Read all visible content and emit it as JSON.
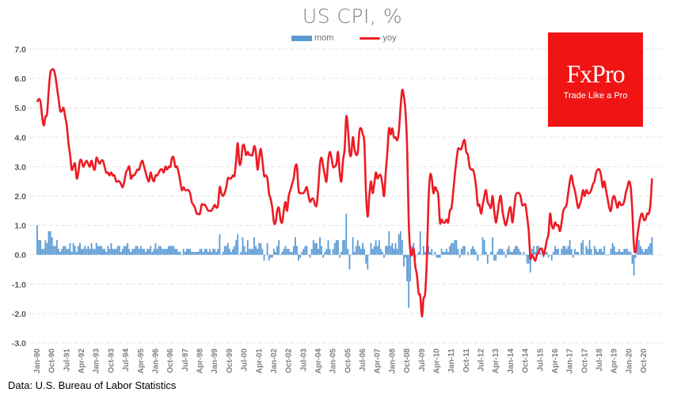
{
  "chart_data": {
    "type": "bar+line",
    "title": "US CPI, %",
    "xlabel": "",
    "ylabel": "",
    "ylim": [
      -3.0,
      7.0
    ],
    "yticks": [
      "7.0",
      "6.0",
      "5.0",
      "4.0",
      "3.0",
      "2.0",
      "1.0",
      "0.0",
      "-1.0",
      "-2.0",
      "-3.0"
    ],
    "grid": true,
    "legend_position": "top",
    "x_start": "Jan-90",
    "x_end": "Mar-21",
    "x_frequency": "monthly",
    "xticks": [
      "Jan-90",
      "Oct-90",
      "Jul-91",
      "Apr-92",
      "Jan-93",
      "Oct-93",
      "Jul-94",
      "Apr-95",
      "Jan-96",
      "Oct-96",
      "Jul-97",
      "Apr-98",
      "Jan-99",
      "Oct-99",
      "Jul-00",
      "Apr-01",
      "Jan-02",
      "Oct-02",
      "Jul-03",
      "Apr-04",
      "Jan-05",
      "Oct-05",
      "Jul-06",
      "Apr-07",
      "Jan-08",
      "Oct-08",
      "Jul-09",
      "Apr-10",
      "Jan-11",
      "Oct-11",
      "Jul-12",
      "Apr-13",
      "Jan-14",
      "Oct-14",
      "Jul-15",
      "Apr-16",
      "Jan-17",
      "Oct-17",
      "Jul-18",
      "Apr-19",
      "Jan-20",
      "Oct-20"
    ],
    "series": [
      {
        "name": "mom",
        "type": "bar",
        "color": "#5b9bd5",
        "values": [
          1.0,
          0.5,
          0.5,
          0.2,
          0.2,
          0.5,
          0.4,
          0.8,
          0.8,
          0.6,
          0.3,
          0.3,
          0.5,
          0.2,
          0.1,
          0.2,
          0.3,
          0.3,
          0.2,
          0.2,
          0.4,
          0.1,
          0.4,
          0.3,
          0.1,
          0.3,
          0.4,
          0.2,
          0.2,
          0.3,
          0.2,
          0.3,
          0.2,
          0.4,
          0.2,
          0.2,
          0.4,
          0.3,
          0.3,
          0.3,
          0.2,
          0.2,
          0.1,
          0.3,
          0.2,
          0.4,
          0.2,
          0.2,
          0.2,
          0.3,
          0.3,
          0.1,
          0.2,
          0.3,
          0.3,
          0.4,
          0.2,
          0.1,
          0.2,
          0.2,
          0.3,
          0.3,
          0.2,
          0.3,
          0.2,
          0.2,
          0.1,
          0.2,
          0.2,
          0.3,
          0.1,
          0.2,
          0.4,
          0.2,
          0.3,
          0.3,
          0.2,
          0.2,
          0.2,
          0.2,
          0.3,
          0.3,
          0.3,
          0.3,
          0.2,
          0.2,
          0.1,
          0.1,
          0.0,
          0.2,
          0.1,
          0.2,
          0.2,
          0.2,
          0.1,
          0.1,
          0.1,
          0.1,
          0.1,
          0.2,
          0.2,
          0.1,
          0.2,
          0.2,
          0.1,
          0.2,
          0.1,
          0.2,
          0.2,
          0.1,
          0.2,
          0.7,
          0.0,
          0.1,
          0.3,
          0.3,
          0.4,
          0.2,
          0.1,
          0.2,
          0.3,
          0.5,
          0.7,
          0.0,
          0.1,
          0.6,
          0.3,
          0.1,
          0.5,
          0.2,
          0.2,
          0.2,
          0.6,
          0.3,
          0.2,
          0.4,
          0.4,
          0.2,
          -0.2,
          0.0,
          0.4,
          -0.2,
          -0.1,
          -0.1,
          0.2,
          0.1,
          0.3,
          0.5,
          0.0,
          0.1,
          0.2,
          0.3,
          0.2,
          0.2,
          0.1,
          0.1,
          0.3,
          0.6,
          0.3,
          -0.2,
          -0.1,
          0.1,
          0.2,
          0.3,
          0.3,
          0.0,
          -0.1,
          0.2,
          0.5,
          0.4,
          0.4,
          0.2,
          0.6,
          0.3,
          -0.1,
          0.1,
          0.2,
          0.5,
          0.2,
          0.0,
          0.2,
          0.4,
          0.5,
          0.5,
          -0.1,
          0.1,
          0.5,
          0.5,
          1.4,
          0.2,
          -0.5,
          0.0,
          0.6,
          0.1,
          0.3,
          0.5,
          0.3,
          0.2,
          0.4,
          0.2,
          -0.3,
          -0.5,
          0.0,
          0.4,
          0.2,
          0.3,
          0.5,
          0.3,
          0.5,
          0.2,
          0.1,
          -0.1,
          0.3,
          0.3,
          0.8,
          0.3,
          0.4,
          0.2,
          0.4,
          0.2,
          0.7,
          0.8,
          0.5,
          -0.4,
          -0.1,
          -0.9,
          -1.8,
          -0.9,
          0.3,
          0.4,
          -0.1,
          0.0,
          0.1,
          0.8,
          0.0,
          0.3,
          0.1,
          0.2,
          0.3,
          0.1,
          0.2,
          0.0,
          0.1,
          -0.1,
          -0.1,
          -0.1,
          0.2,
          0.1,
          0.1,
          0.2,
          0.1,
          0.3,
          0.4,
          0.4,
          0.5,
          0.5,
          0.2,
          -0.1,
          0.2,
          0.3,
          0.3,
          0.0,
          0.1,
          0.0,
          0.2,
          0.3,
          0.2,
          0.1,
          -0.2,
          0.0,
          0.0,
          0.6,
          0.5,
          0.1,
          -0.3,
          0.0,
          0.1,
          0.6,
          -0.2,
          -0.2,
          0.1,
          0.2,
          0.2,
          0.2,
          0.1,
          -0.1,
          0.2,
          0.3,
          0.1,
          0.1,
          0.2,
          0.3,
          0.3,
          0.2,
          0.1,
          0.0,
          0.1,
          0.0,
          -0.3,
          -0.3,
          -0.6,
          0.2,
          0.3,
          0.1,
          0.3,
          0.3,
          0.1,
          0.0,
          -0.1,
          0.1,
          0.1,
          -0.1,
          0.0,
          -0.2,
          0.1,
          0.3,
          0.2,
          0.2,
          0.0,
          0.2,
          0.3,
          0.3,
          0.2,
          0.3,
          0.5,
          0.2,
          -0.1,
          0.2,
          0.1,
          0.1,
          0.0,
          0.4,
          0.5,
          0.0,
          0.3,
          0.2,
          0.5,
          0.2,
          0.0,
          0.3,
          0.2,
          0.1,
          0.2,
          0.2,
          0.1,
          0.3,
          0.0,
          0.0,
          0.0,
          0.2,
          0.4,
          0.3,
          0.1,
          0.1,
          0.2,
          0.1,
          0.1,
          0.2,
          0.2,
          0.2,
          0.1,
          0.1,
          -0.3,
          -0.7,
          -0.1,
          0.5,
          0.5,
          0.3,
          0.2,
          0.1,
          0.2,
          0.2,
          0.3,
          0.4,
          0.6
        ]
      },
      {
        "name": "yoy",
        "type": "line",
        "color": "#ed1c24",
        "values": [
          5.2,
          5.3,
          5.2,
          4.7,
          4.4,
          4.7,
          4.8,
          5.6,
          6.2,
          6.3,
          6.3,
          6.1,
          5.7,
          5.3,
          4.9,
          4.9,
          5.0,
          4.7,
          4.4,
          3.8,
          3.4,
          2.9,
          3.0,
          3.1,
          2.6,
          2.8,
          3.2,
          3.2,
          3.0,
          3.1,
          3.2,
          3.1,
          3.0,
          3.2,
          3.0,
          2.9,
          3.3,
          3.2,
          3.1,
          3.2,
          3.2,
          3.0,
          2.8,
          2.8,
          2.7,
          2.8,
          2.7,
          2.7,
          2.5,
          2.5,
          2.5,
          2.4,
          2.3,
          2.5,
          2.8,
          2.9,
          3.0,
          2.6,
          2.7,
          2.7,
          2.8,
          2.9,
          2.9,
          3.1,
          3.2,
          3.0,
          2.8,
          2.6,
          2.5,
          2.8,
          2.6,
          2.5,
          2.7,
          2.7,
          2.8,
          2.9,
          2.9,
          2.8,
          3.0,
          2.9,
          3.0,
          3.0,
          3.3,
          3.3,
          3.0,
          3.0,
          2.8,
          2.5,
          2.2,
          2.3,
          2.2,
          2.2,
          2.2,
          2.1,
          1.8,
          1.7,
          1.6,
          1.4,
          1.4,
          1.4,
          1.7,
          1.7,
          1.7,
          1.6,
          1.5,
          1.5,
          1.5,
          1.6,
          1.7,
          1.6,
          1.7,
          2.3,
          2.1,
          2.0,
          2.1,
          2.3,
          2.6,
          2.6,
          2.6,
          2.7,
          2.7,
          3.2,
          3.8,
          3.1,
          3.2,
          3.7,
          3.7,
          3.4,
          3.5,
          3.4,
          3.4,
          3.4,
          3.7,
          3.5,
          2.9,
          3.3,
          3.6,
          3.2,
          2.7,
          2.7,
          2.6,
          2.1,
          1.9,
          1.6,
          1.1,
          1.1,
          1.5,
          1.6,
          1.2,
          1.1,
          1.5,
          1.8,
          1.5,
          2.0,
          2.2,
          2.4,
          2.6,
          3.0,
          3.0,
          2.2,
          2.1,
          2.1,
          2.1,
          2.2,
          2.3,
          2.0,
          1.8,
          1.9,
          1.9,
          1.7,
          1.7,
          2.3,
          3.1,
          3.3,
          3.0,
          2.7,
          2.5,
          3.2,
          3.5,
          3.3,
          3.0,
          3.0,
          3.1,
          3.5,
          2.8,
          2.5,
          3.2,
          3.6,
          4.7,
          4.3,
          3.5,
          3.4,
          4.0,
          3.6,
          3.4,
          3.5,
          4.2,
          4.3,
          4.1,
          3.8,
          2.1,
          1.3,
          2.0,
          2.5,
          2.1,
          2.4,
          2.8,
          2.6,
          2.7,
          2.7,
          2.4,
          2.0,
          2.8,
          3.5,
          4.3,
          4.1,
          4.3,
          4.0,
          4.0,
          3.9,
          4.2,
          5.0,
          5.6,
          5.4,
          4.9,
          3.7,
          1.1,
          0.1,
          0.0,
          0.2,
          -0.4,
          -0.7,
          -1.3,
          -1.4,
          -2.1,
          -1.5,
          -1.3,
          -0.2,
          1.8,
          2.7,
          2.6,
          2.1,
          2.3,
          2.2,
          2.0,
          1.1,
          1.2,
          1.1,
          1.1,
          1.2,
          1.1,
          1.5,
          1.6,
          2.1,
          2.7,
          3.2,
          3.6,
          3.6,
          3.6,
          3.8,
          3.9,
          3.5,
          3.4,
          3.0,
          2.9,
          2.9,
          2.7,
          2.3,
          1.7,
          1.7,
          1.4,
          1.7,
          2.0,
          2.2,
          1.8,
          1.7,
          1.6,
          2.0,
          1.5,
          1.1,
          1.4,
          1.8,
          2.0,
          1.5,
          1.2,
          1.0,
          1.2,
          1.5,
          1.6,
          1.1,
          1.5,
          2.0,
          2.1,
          2.1,
          2.0,
          1.7,
          1.7,
          1.7,
          1.3,
          0.8,
          -0.1,
          0.0,
          -0.1,
          -0.2,
          0.0,
          0.1,
          0.2,
          0.2,
          0.0,
          0.2,
          0.5,
          0.7,
          1.4,
          1.0,
          0.9,
          1.1,
          1.0,
          1.0,
          0.8,
          1.1,
          1.5,
          1.6,
          1.7,
          2.1,
          2.5,
          2.7,
          2.4,
          2.2,
          1.9,
          1.6,
          1.7,
          1.9,
          2.2,
          2.0,
          2.2,
          2.1,
          2.1,
          2.2,
          2.4,
          2.5,
          2.8,
          2.9,
          2.9,
          2.7,
          2.3,
          2.5,
          2.2,
          1.9,
          1.6,
          1.5,
          1.9,
          2.0,
          1.8,
          1.6,
          1.8,
          1.7,
          1.7,
          1.8,
          2.1,
          2.3,
          2.5,
          2.3,
          1.5,
          0.3,
          0.1,
          0.6,
          1.0,
          1.3,
          1.4,
          1.2,
          1.2,
          1.4,
          1.4,
          1.7,
          2.6
        ]
      }
    ]
  },
  "legend": {
    "mom": "mom",
    "yoy": "yoy"
  },
  "logo": {
    "brand": "FxPro",
    "tagline": "Trade Like a Pro",
    "color": "#f01414"
  },
  "source": "Data: U.S. Bureau of Labor Statistics"
}
